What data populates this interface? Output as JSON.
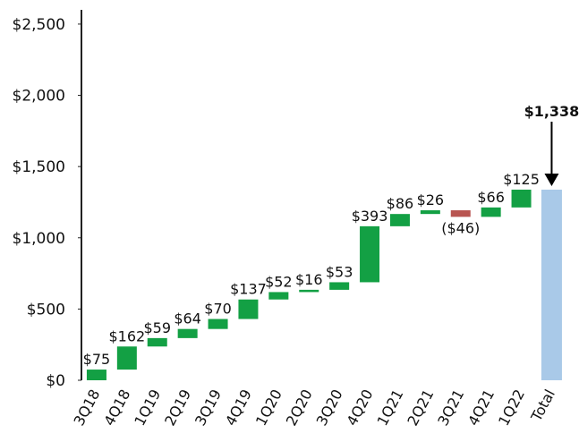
{
  "chart_data": {
    "type": "waterfall",
    "categories": [
      "3Q18",
      "4Q18",
      "1Q19",
      "2Q19",
      "3Q19",
      "4Q19",
      "1Q20",
      "2Q20",
      "3Q20",
      "4Q20",
      "1Q21",
      "2Q21",
      "3Q21",
      "4Q21",
      "1Q22",
      "Total"
    ],
    "values": [
      75,
      162,
      59,
      64,
      70,
      137,
      52,
      16,
      53,
      393,
      86,
      26,
      -46,
      66,
      125,
      1338
    ],
    "value_labels": [
      "$75",
      "$162",
      "$59",
      "$64",
      "$70",
      "$137",
      "$52",
      "$16",
      "$53",
      "$393",
      "$86",
      "$26",
      "($46)",
      "$66",
      "$125",
      "$1,338"
    ],
    "colors": {
      "increase": "#13a044",
      "decrease": "#b85450",
      "total": "#a9c9e8"
    },
    "ylim": [
      0,
      2600
    ],
    "yticks": [
      {
        "value": 0,
        "label": "$0"
      },
      {
        "value": 500,
        "label": "$500"
      },
      {
        "value": 1000,
        "label": "$1,000"
      },
      {
        "value": 1500,
        "label": "$1,500"
      },
      {
        "value": 2000,
        "label": "$2,000"
      },
      {
        "value": 2500,
        "label": "$2,500"
      }
    ],
    "grid": false
  }
}
